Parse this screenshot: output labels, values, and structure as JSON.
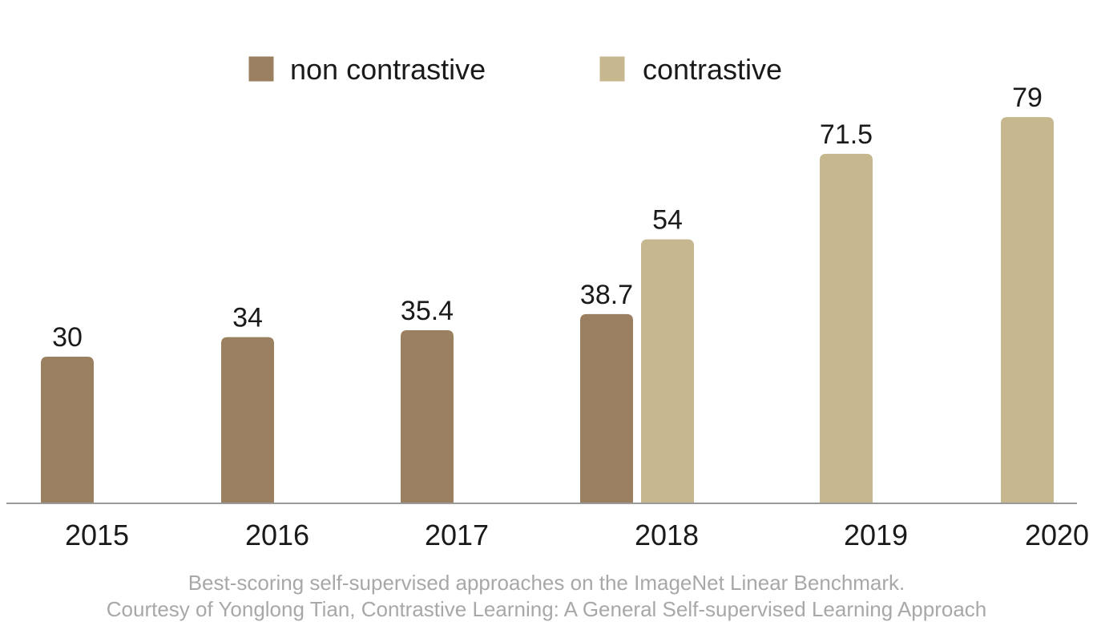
{
  "chart_data": {
    "type": "bar",
    "categories": [
      "2015",
      "2016",
      "2017",
      "2018",
      "2019",
      "2020"
    ],
    "series": [
      {
        "name": "non contrastive",
        "color": "#9a7f60",
        "values": [
          30,
          34,
          35.4,
          38.7,
          null,
          null
        ]
      },
      {
        "name": "contrastive",
        "color": "#c6b78f",
        "values": [
          null,
          null,
          null,
          54,
          71.5,
          79
        ]
      }
    ],
    "value_labels": [
      [
        "30",
        "34",
        "35.4",
        "38.7",
        null,
        null
      ],
      [
        null,
        null,
        null,
        "54",
        "71.5",
        "79"
      ]
    ],
    "ylim": [
      0,
      80
    ],
    "grid": false,
    "legend_position": "top-center",
    "title": "",
    "xlabel": "",
    "ylabel": ""
  },
  "caption": {
    "line1": "Best-scoring self-supervised approaches on the ImageNet Linear Benchmark.",
    "line2": "Courtesy of Yonglong Tian, Contrastive Learning: A General Self-supervised Learning Approach"
  }
}
